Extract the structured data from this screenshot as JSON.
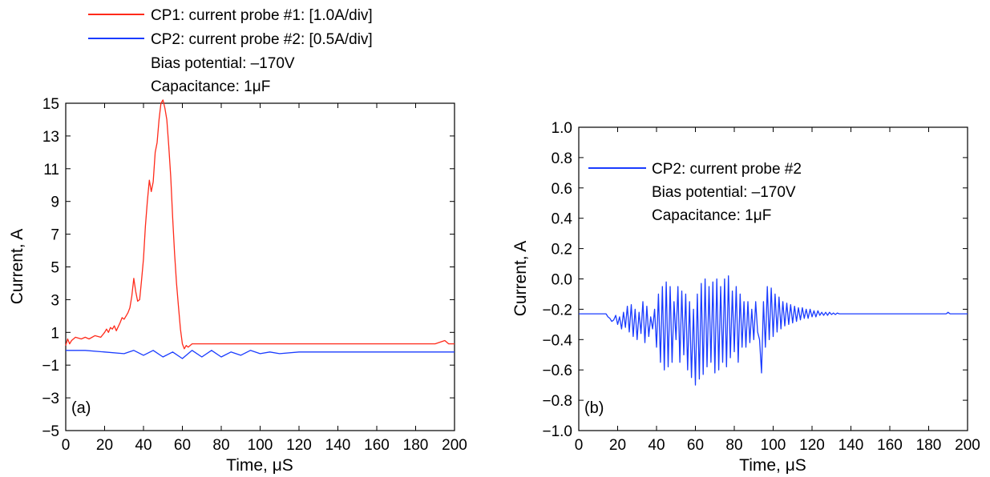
{
  "chart_data": [
    {
      "type": "line",
      "panel_label": "(a)",
      "xlabel": "Time, μS",
      "ylabel": "Current, A",
      "xlim": [
        0,
        200
      ],
      "ylim": [
        -5,
        15
      ],
      "xticks": [
        0,
        20,
        40,
        60,
        80,
        100,
        120,
        140,
        160,
        180,
        200
      ],
      "yticks": [
        -5,
        -3,
        -1,
        1,
        3,
        5,
        7,
        9,
        11,
        13,
        15
      ],
      "xtick_labels": [
        "0",
        "20",
        "40",
        "60",
        "80",
        "100",
        "120",
        "140",
        "160",
        "180",
        "200"
      ],
      "ytick_labels": [
        "−5",
        "−3",
        "−1",
        "1",
        "3",
        "5",
        "7",
        "9",
        "11",
        "13",
        "15"
      ],
      "grid": false,
      "legend_position": "above plot, left",
      "legend": [
        {
          "text": "CP1: current probe #1: [1.0A/div]",
          "color": "#ff2a1a"
        },
        {
          "text": "CP2: current probe #2: [0.5A/div]",
          "color": "#1a3cff"
        }
      ],
      "annotations": [
        "Bias potential: –170V",
        "Capacitance: 1μF"
      ],
      "series": [
        {
          "color": "#ff2a1a",
          "x": [
            0,
            1,
            2,
            3,
            5,
            8,
            10,
            12,
            15,
            18,
            20,
            21,
            22,
            23,
            24,
            25,
            26,
            28,
            29,
            30,
            31,
            32,
            33,
            34,
            35,
            36,
            37,
            38,
            39,
            40,
            41,
            42,
            43,
            44,
            45,
            46,
            47,
            48,
            49,
            50,
            51,
            52,
            53,
            54,
            55,
            56,
            57,
            58,
            59,
            60,
            61,
            62,
            63,
            65,
            70,
            80,
            90,
            100,
            110,
            120,
            130,
            140,
            150,
            160,
            170,
            180,
            190,
            195,
            197,
            200
          ],
          "y": [
            0.2,
            0.6,
            0.3,
            0.5,
            0.7,
            0.6,
            0.7,
            0.6,
            0.8,
            0.7,
            1.0,
            1.2,
            1.0,
            1.3,
            1.2,
            1.4,
            1.1,
            1.6,
            1.9,
            1.8,
            2.0,
            2.2,
            2.5,
            3.2,
            4.3,
            3.5,
            2.9,
            3.0,
            4.2,
            5.5,
            7.5,
            9.0,
            10.3,
            9.6,
            10.2,
            12.0,
            12.6,
            14.0,
            15.0,
            15.2,
            14.7,
            14.0,
            12.4,
            10.5,
            8.0,
            5.8,
            4.0,
            2.6,
            1.2,
            0.3,
            0.0,
            0.2,
            0.1,
            0.3,
            0.3,
            0.3,
            0.3,
            0.3,
            0.3,
            0.3,
            0.3,
            0.3,
            0.3,
            0.3,
            0.3,
            0.3,
            0.3,
            0.5,
            0.3,
            0.3
          ]
        },
        {
          "color": "#1a3cff",
          "x": [
            0,
            10,
            20,
            30,
            35,
            40,
            45,
            50,
            55,
            60,
            65,
            70,
            75,
            80,
            85,
            90,
            95,
            100,
            105,
            110,
            120,
            140,
            160,
            180,
            200
          ],
          "y": [
            -0.1,
            -0.1,
            -0.2,
            -0.3,
            -0.1,
            -0.4,
            -0.1,
            -0.5,
            -0.2,
            -0.6,
            -0.1,
            -0.5,
            -0.1,
            -0.5,
            -0.2,
            -0.4,
            -0.1,
            -0.3,
            -0.2,
            -0.3,
            -0.2,
            -0.2,
            -0.2,
            -0.2,
            -0.2
          ]
        }
      ]
    },
    {
      "type": "line",
      "panel_label": "(b)",
      "xlabel": "Time, μS",
      "ylabel": "Current, A",
      "xlim": [
        0,
        200
      ],
      "ylim": [
        -1.0,
        1.0
      ],
      "xticks": [
        0,
        20,
        40,
        60,
        80,
        100,
        120,
        140,
        160,
        180,
        200
      ],
      "yticks": [
        -1.0,
        -0.8,
        -0.6,
        -0.4,
        -0.2,
        0.0,
        0.2,
        0.4,
        0.6,
        0.8,
        1.0
      ],
      "xtick_labels": [
        "0",
        "20",
        "40",
        "60",
        "80",
        "100",
        "120",
        "140",
        "160",
        "180",
        "200"
      ],
      "ytick_labels": [
        "−1.0",
        "−0.8",
        "−0.6",
        "−0.4",
        "−0.2",
        "0.0",
        "0.2",
        "0.4",
        "0.6",
        "0.8",
        "1.0"
      ],
      "grid": false,
      "legend_position": "top-left inside",
      "legend": [
        {
          "text": "CP2: current probe #2",
          "color": "#1a3cff"
        }
      ],
      "annotations": [
        "Bias potential: –170V",
        "Capacitance: 1μF"
      ],
      "series": [
        {
          "color": "#1a3cff",
          "x": [
            0,
            14,
            15,
            16,
            17,
            18,
            19,
            20,
            21,
            22,
            23,
            24,
            25,
            26,
            27,
            28,
            29,
            30,
            31,
            32,
            33,
            34,
            35,
            36,
            37,
            38,
            39,
            40,
            41,
            42,
            43,
            44,
            45,
            46,
            47,
            48,
            49,
            50,
            51,
            52,
            53,
            54,
            55,
            56,
            57,
            58,
            59,
            60,
            61,
            62,
            63,
            64,
            65,
            66,
            67,
            68,
            69,
            70,
            71,
            72,
            73,
            74,
            75,
            76,
            77,
            78,
            79,
            80,
            81,
            82,
            83,
            84,
            85,
            86,
            87,
            88,
            89,
            90,
            91,
            92,
            93,
            94,
            95,
            96,
            97,
            98,
            99,
            100,
            101,
            102,
            103,
            104,
            105,
            106,
            107,
            108,
            109,
            110,
            111,
            112,
            113,
            114,
            115,
            116,
            117,
            118,
            119,
            120,
            121,
            122,
            123,
            124,
            125,
            126,
            127,
            128,
            129,
            130,
            131,
            132,
            133,
            134,
            135,
            136,
            137,
            138,
            140,
            160,
            189,
            190,
            191,
            200
          ],
          "y": [
            -0.23,
            -0.23,
            -0.25,
            -0.26,
            -0.28,
            -0.27,
            -0.24,
            -0.3,
            -0.25,
            -0.33,
            -0.22,
            -0.32,
            -0.18,
            -0.35,
            -0.17,
            -0.38,
            -0.2,
            -0.4,
            -0.22,
            -0.36,
            -0.15,
            -0.42,
            -0.18,
            -0.38,
            -0.25,
            -0.33,
            -0.2,
            -0.45,
            -0.1,
            -0.55,
            -0.05,
            -0.6,
            -0.02,
            -0.58,
            -0.05,
            -0.55,
            -0.15,
            -0.4,
            -0.05,
            -0.55,
            -0.08,
            -0.5,
            -0.1,
            -0.6,
            -0.15,
            -0.65,
            -0.2,
            -0.7,
            -0.1,
            -0.66,
            -0.03,
            -0.63,
            0.0,
            -0.58,
            -0.05,
            -0.55,
            -0.02,
            -0.62,
            0.0,
            -0.6,
            -0.05,
            -0.55,
            0.0,
            -0.58,
            0.02,
            -0.52,
            -0.08,
            -0.48,
            -0.05,
            -0.55,
            -0.1,
            -0.45,
            -0.15,
            -0.45,
            -0.15,
            -0.42,
            -0.2,
            -0.4,
            -0.15,
            -0.35,
            -0.4,
            -0.62,
            -0.15,
            -0.45,
            -0.05,
            -0.4,
            -0.06,
            -0.38,
            -0.1,
            -0.35,
            -0.12,
            -0.33,
            -0.15,
            -0.31,
            -0.16,
            -0.3,
            -0.17,
            -0.29,
            -0.18,
            -0.28,
            -0.19,
            -0.27,
            -0.19,
            -0.26,
            -0.2,
            -0.26,
            -0.2,
            -0.25,
            -0.21,
            -0.25,
            -0.21,
            -0.24,
            -0.22,
            -0.24,
            -0.22,
            -0.24,
            -0.22,
            -0.235,
            -0.225,
            -0.235,
            -0.225,
            -0.23,
            -0.23,
            -0.23,
            -0.23,
            -0.23,
            -0.23,
            -0.23,
            -0.23,
            -0.22,
            -0.23,
            -0.23
          ]
        }
      ]
    }
  ]
}
